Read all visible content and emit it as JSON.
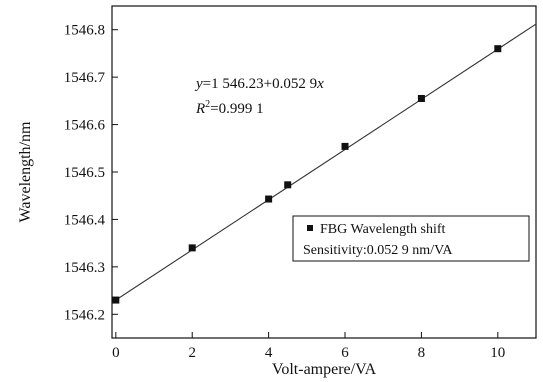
{
  "chart_data": {
    "type": "scatter",
    "xlabel": "Volt-ampere/VA",
    "ylabel": "Wavelength/nm",
    "xlim": [
      -0.1,
      11
    ],
    "ylim": [
      1546.15,
      1546.85
    ],
    "xticks": [
      0,
      2,
      4,
      6,
      8,
      10
    ],
    "xtick_labels": [
      "0",
      "2",
      "4",
      "6",
      "8",
      "10"
    ],
    "yticks": [
      1546.2,
      1546.3,
      1546.4,
      1546.5,
      1546.6,
      1546.7,
      1546.8
    ],
    "ytick_labels": [
      "1546.2",
      "1546.3",
      "1546.4",
      "1546.5",
      "1546.6",
      "1546.7",
      "1546.8"
    ],
    "grid": false,
    "series": [
      {
        "name": "FBG Wavelength shift",
        "marker": "square",
        "color": "#111111",
        "x": [
          0,
          2,
          4,
          4.5,
          6,
          8,
          10
        ],
        "y": [
          1546.23,
          1546.34,
          1546.443,
          1546.473,
          1546.554,
          1546.655,
          1546.76
        ]
      }
    ],
    "fit": {
      "intercept": 1546.23,
      "slope": 0.0529,
      "x_range": [
        -0.1,
        11
      ],
      "color": "#333333"
    },
    "annotations": {
      "equation_y": "y",
      "equation_rest": "=1 546.23+0.052 9",
      "equation_x": "x",
      "r2_R": "R",
      "r2_sup": "2",
      "r2_value": "=0.999 1"
    },
    "legend": {
      "position": "lower-right",
      "entry_label": "FBG Wavelength shift",
      "sensitivity": "Sensitivity:0.052 9 nm/VA"
    }
  }
}
